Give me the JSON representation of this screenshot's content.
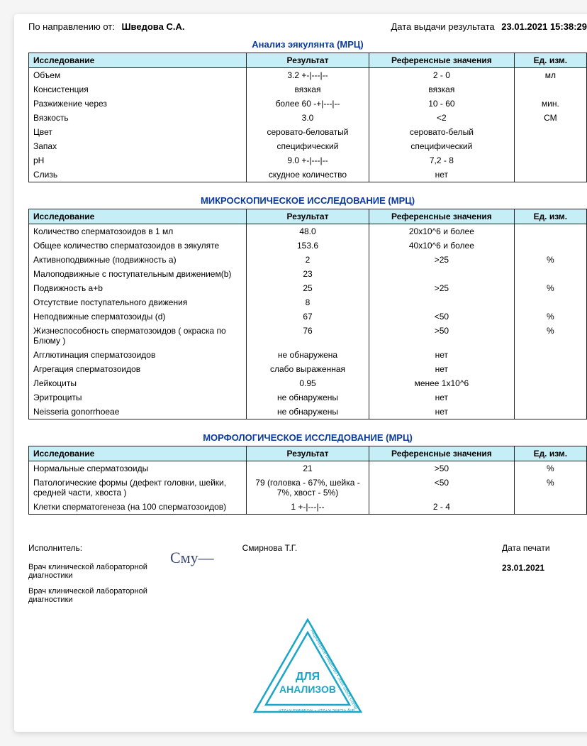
{
  "header": {
    "from_label": "По направлению от:",
    "from_value": "Шведова С.А.",
    "date_label": "Дата выдачи результата",
    "date_value": "23.01.2021 15:38:29"
  },
  "columns": {
    "name": "Исследование",
    "result": "Результат",
    "reference": "Референсные значения",
    "unit": "Ед. изм."
  },
  "section1": {
    "title": "Анализ эякулянта (МРЦ)",
    "rows": [
      {
        "n": "Объем",
        "r": "3.2  +-|---|--",
        "f": "2 - 0",
        "u": "мл"
      },
      {
        "n": "Консистенция",
        "r": "вязкая",
        "f": "вязкая",
        "u": ""
      },
      {
        "n": "Разжижение через",
        "r": "более 60  -+|---|--",
        "f": "10 - 60",
        "u": "мин."
      },
      {
        "n": "Вязкость",
        "r": "3.0",
        "f": "<2",
        "u": "СМ"
      },
      {
        "n": "Цвет",
        "r": "серовато-беловатый",
        "f": "серовато-белый",
        "u": ""
      },
      {
        "n": "Запах",
        "r": "специфический",
        "f": "специфический",
        "u": ""
      },
      {
        "n": "pH",
        "r": "9.0  +-|---|--",
        "f": "7,2 - 8",
        "u": ""
      },
      {
        "n": "Слизь",
        "r": "скудное количество",
        "f": "нет",
        "u": ""
      }
    ]
  },
  "section2": {
    "title": "МИКРОСКОПИЧЕСКОЕ ИССЛЕДОВАНИЕ (МРЦ)",
    "rows": [
      {
        "n": "Количество сперматозоидов в 1 мл",
        "r": "48.0",
        "f": "20x10^6 и более",
        "u": ""
      },
      {
        "n": "Общее количество сперматозоидов в эякуляте",
        "r": "153.6",
        "f": "40x10^6 и более",
        "u": ""
      },
      {
        "n": "Активноподвижные (подвижность а)",
        "r": "2",
        "f": ">25",
        "u": "%"
      },
      {
        "n": "Малоподвижные с поступательным движением(b)",
        "r": "23",
        "f": "",
        "u": ""
      },
      {
        "n": "Подвижность a+b",
        "r": "25",
        "f": ">25",
        "u": "%"
      },
      {
        "n": "Отсутствие поступательного движения",
        "r": "8",
        "f": "",
        "u": ""
      },
      {
        "n": "Неподвижные сперматозоиды (d)",
        "r": "67",
        "f": "<50",
        "u": "%"
      },
      {
        "n": "Жизнеспособность сперматозоидов ( окраска по Блюму )",
        "r": "76",
        "f": ">50",
        "u": "%"
      },
      {
        "n": "Агглютинация сперматозоидов",
        "r": "не обнаружена",
        "f": "нет",
        "u": ""
      },
      {
        "n": "Агрегация сперматозоидов",
        "r": "слабо выраженная",
        "f": "нет",
        "u": ""
      },
      {
        "n": "Лейкоциты",
        "r": "0.95",
        "f": "менее 1x10^6",
        "u": ""
      },
      {
        "n": "Эритроциты",
        "r": "не обнаружены",
        "f": "нет",
        "u": ""
      },
      {
        "n": "Neisseria gonorrhoeae",
        "r": "не обнаружены",
        "f": "нет",
        "u": ""
      }
    ]
  },
  "section3": {
    "title": "МОРФОЛОГИЧЕСКОЕ ИССЛЕДОВАНИЕ (МРЦ)",
    "rows": [
      {
        "n": "Нормальные сперматозоиды",
        "r": "21",
        "f": ">50",
        "u": "%"
      },
      {
        "n": "Патологические формы (дефект головки, шейки, средней части, хвоста )",
        "r": "79 (головка - 67%, шейка - 7%, хвост - 5%)",
        "f": "<50",
        "u": "%"
      },
      {
        "n": "Клетки сперматогенеза (на 100 сперматозоидов)",
        "r": "1  +-|---|--",
        "f": "2 - 4",
        "u": ""
      }
    ]
  },
  "footer": {
    "exec_label": "Исполнитель:",
    "role1": "Врач клинической лабораторной диагностики",
    "role2": "Врач клинической лабораторной диагностики",
    "signature": "Cму—",
    "exec_name": "Смирнова Т.Г.",
    "print_label": "Дата печати",
    "print_date": "23.01.2021",
    "stamp_line1": "ДЛЯ",
    "stamp_line2": "АНАЛИЗОВ",
    "stamp_outer": "Акционерное общество • Joint Stock Company «Clinic K+31» • «Клиника К+31»"
  },
  "style": {
    "header_bg": "#c5eef6",
    "title_color": "#0a3b9a",
    "stamp_color": "#1aa6c7"
  }
}
